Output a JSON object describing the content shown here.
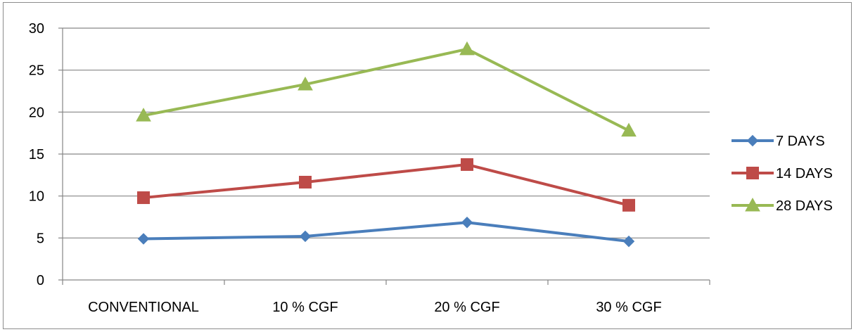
{
  "chart_data": {
    "type": "line",
    "title": "",
    "xlabel": "",
    "ylabel": "",
    "categories": [
      "CONVENTIONAL",
      "10 % CGF",
      "20 % CGF",
      "30 % CGF"
    ],
    "ylim": [
      0,
      30
    ],
    "yticks": [
      0,
      5,
      10,
      15,
      20,
      25,
      30
    ],
    "grid": true,
    "legend_position": "right",
    "series": [
      {
        "name": "7 DAYS",
        "values": [
          4.9,
          5.2,
          6.85,
          4.6
        ],
        "color": "#4A7EBB",
        "marker": "diamond"
      },
      {
        "name": "14 DAYS",
        "values": [
          9.8,
          11.65,
          13.75,
          8.9
        ],
        "color": "#BE4B48",
        "marker": "square"
      },
      {
        "name": "28 DAYS",
        "values": [
          19.6,
          23.3,
          27.5,
          17.8
        ],
        "color": "#98B954",
        "marker": "triangle"
      }
    ]
  }
}
